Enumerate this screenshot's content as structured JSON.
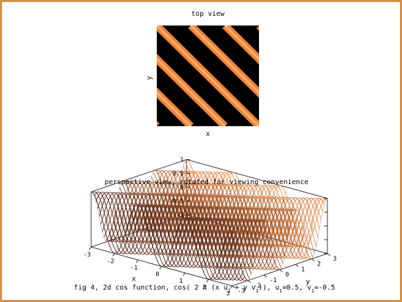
{
  "chart_data": [
    {
      "type": "heatmap",
      "title": "top view",
      "xlabel": "x",
      "ylabel": "y",
      "function": "cos(2π(x·u1 + y·v1))",
      "params": {
        "u1": 0.5,
        "v1": -0.5
      },
      "colormap": [
        "#000000",
        "#ff8c3c"
      ]
    },
    {
      "type": "surface",
      "title": "perspective view, rotated for viewing convenience",
      "xlabel": "x",
      "ylabel": "y",
      "x_ticks": [
        "-3",
        "-2",
        "-1",
        "0",
        "1",
        "2",
        "3"
      ],
      "y_ticks": [
        "-3",
        "-2",
        "-1",
        "0",
        "1",
        "2",
        "3"
      ],
      "z_ticks": [
        "1",
        "0.5",
        "0",
        "-0.5",
        "-1"
      ],
      "xlim": [
        -3,
        3
      ],
      "ylim": [
        -3,
        3
      ],
      "zlim": [
        -1,
        1
      ],
      "params": {
        "u1": 0.5,
        "v1": -0.5
      }
    }
  ],
  "caption": {
    "prefix": "fig 4, 2d cos function, cos( 2 π (x u",
    "mid1": " + y v",
    "mid2": ")),  u",
    "mid3": "=0.5, v",
    "suffix": "=-0.5",
    "sub": "1"
  }
}
